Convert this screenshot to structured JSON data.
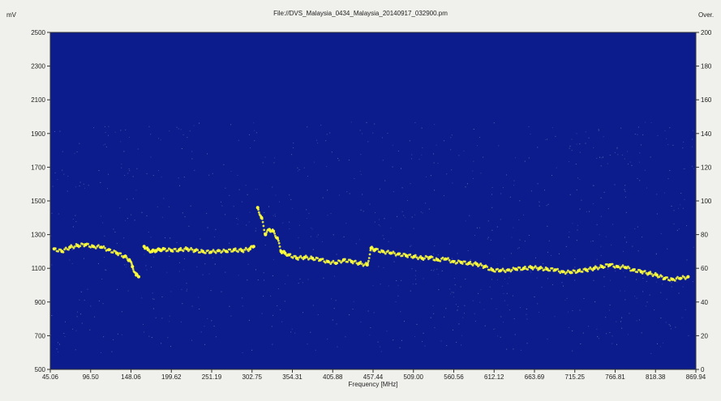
{
  "window": {
    "file_title": "File://DVS_Malaysia_0434_Malaysia_20140917_032900.pm",
    "left_unit": "mV",
    "right_unit": "Over."
  },
  "chart_data": {
    "type": "scatter",
    "title": "File://DVS_Malaysia_0434_Malaysia_20140917_032900.pm",
    "xlabel": "Frequency [MHz]",
    "ylabel": "mV",
    "y2label": "Over.",
    "xlim": [
      45.06,
      869.94
    ],
    "ylim": [
      500,
      2500
    ],
    "y2lim": [
      0,
      200
    ],
    "x_ticks": [
      "45.06",
      "96.50",
      "148.06",
      "199.62",
      "251.19",
      "302.75",
      "354.31",
      "405.88",
      "457.44",
      "509.00",
      "560.56",
      "612.12",
      "663.69",
      "715.25",
      "766.81",
      "818.38",
      "869.94"
    ],
    "y_ticks": [
      500,
      700,
      900,
      1100,
      1300,
      1500,
      1700,
      1900,
      2100,
      2300,
      2500
    ],
    "y2_ticks": [
      0,
      20,
      40,
      60,
      80,
      100,
      120,
      140,
      160,
      180,
      200
    ],
    "background": "#0c1c8c",
    "marker_color": "#ffff3a",
    "noise_color": "#8e96c8",
    "grid": false,
    "series": [
      {
        "x": [
          50,
          60,
          70,
          80,
          90,
          100,
          110,
          120,
          130,
          140,
          146,
          150,
          155,
          158,
          165,
          170,
          175,
          180,
          185,
          190,
          200,
          210,
          220,
          230,
          240,
          250,
          260,
          270,
          280,
          290,
          300,
          305,
          310,
          315,
          320,
          325,
          330,
          335,
          340,
          345,
          350,
          360,
          370,
          380,
          390,
          400,
          410,
          420,
          430,
          440,
          450,
          455,
          460,
          470,
          480,
          490,
          500,
          510,
          520,
          530,
          540,
          550,
          560,
          570,
          580,
          590,
          600,
          610,
          620,
          630,
          640,
          650,
          660,
          670,
          680,
          690,
          700,
          710,
          720,
          730,
          740,
          750,
          760,
          770,
          780,
          790,
          800,
          810,
          820,
          830,
          840,
          850,
          860
        ],
        "y": [
          1215,
          1200,
          1225,
          1235,
          1240,
          1230,
          1225,
          1210,
          1190,
          1170,
          1150,
          1110,
          1060,
          1050,
          1230,
          1210,
          1200,
          1205,
          1210,
          1215,
          1205,
          1210,
          1215,
          1205,
          1200,
          1195,
          1205,
          1200,
          1210,
          1205,
          1215,
          1230,
          1460,
          1400,
          1300,
          1330,
          1320,
          1280,
          1200,
          1190,
          1180,
          1160,
          1165,
          1160,
          1150,
          1140,
          1130,
          1150,
          1140,
          1130,
          1120,
          1220,
          1210,
          1200,
          1190,
          1185,
          1175,
          1170,
          1160,
          1165,
          1150,
          1155,
          1140,
          1135,
          1130,
          1125,
          1110,
          1090,
          1085,
          1090,
          1095,
          1100,
          1105,
          1100,
          1095,
          1090,
          1080,
          1075,
          1085,
          1090,
          1100,
          1110,
          1120,
          1110,
          1105,
          1090,
          1080,
          1070,
          1060,
          1040,
          1035,
          1040,
          1050
        ]
      }
    ]
  }
}
